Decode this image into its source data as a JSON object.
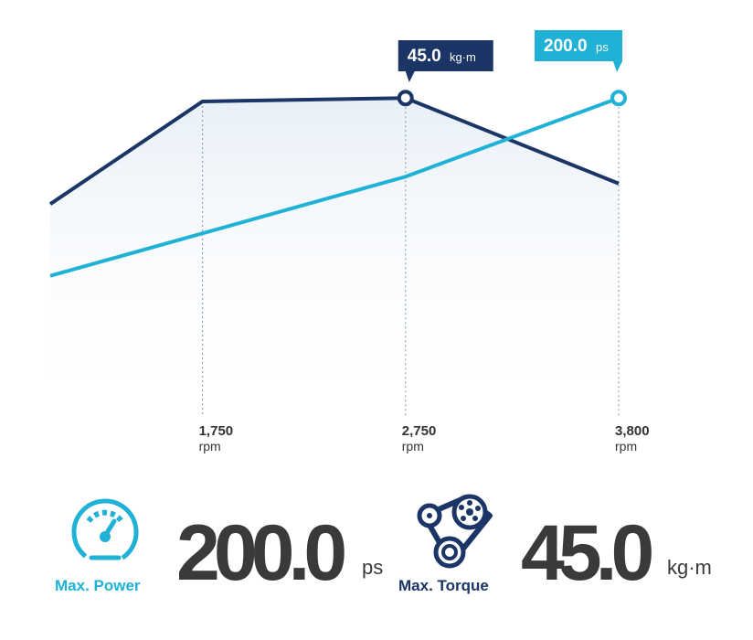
{
  "chart_data": {
    "type": "line",
    "x_ticks": [
      {
        "value": 1750,
        "label": "1,750",
        "unit": "rpm"
      },
      {
        "value": 2750,
        "label": "2,750",
        "unit": "rpm"
      },
      {
        "value": 3800,
        "label": "3,800",
        "unit": "rpm"
      }
    ],
    "series": [
      {
        "name": "Torque",
        "color": "#1b3566",
        "x": [
          1000,
          1750,
          2750,
          3800
        ],
        "y": [
          0.66,
          0.96,
          0.97,
          0.72
        ]
      },
      {
        "name": "Power",
        "color": "#1fb1d6",
        "x": [
          1000,
          2750,
          3800
        ],
        "y": [
          0.45,
          0.74,
          0.97
        ]
      }
    ],
    "callouts": [
      {
        "series": "Torque",
        "x": 2750,
        "value": "45.0",
        "unit": "kg·m",
        "color": "#1b3566"
      },
      {
        "series": "Power",
        "x": 3800,
        "value": "200.0",
        "unit": "ps",
        "color": "#1fb1d6"
      }
    ],
    "grid": false
  },
  "specs": {
    "power": {
      "value": "200.0",
      "unit": "ps",
      "label": "Max. Power",
      "label_color": "#1fb1d6",
      "icon": "speedometer-icon"
    },
    "torque": {
      "value": "45.0",
      "unit": "kg·m",
      "label": "Max. Torque",
      "label_color": "#1b3566",
      "icon": "engine-belt-icon"
    }
  }
}
